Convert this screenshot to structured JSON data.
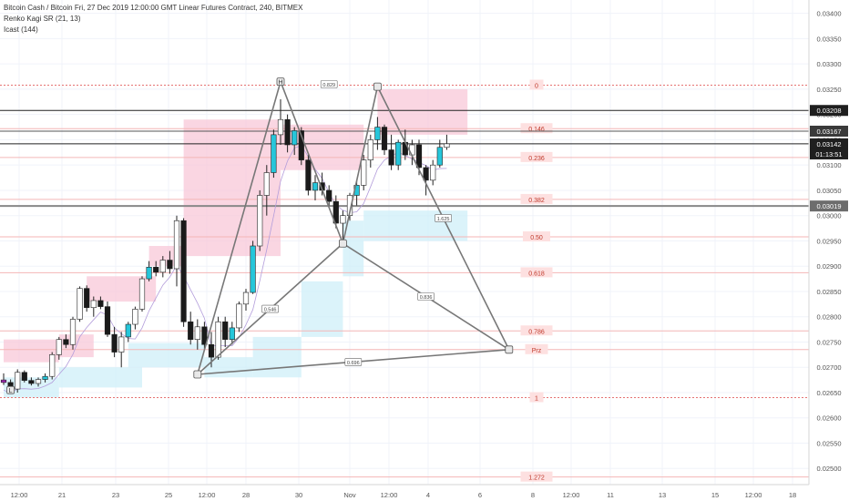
{
  "header": {
    "title": "Bitcoin Cash / Bitcoin Fri, 27 Dec 2019 12:00:00 GMT Linear Futures Contract, 240, BITMEX",
    "indicator_1": "Renko Kagi SR (21, 13)",
    "indicator_2": "Icast (144)"
  },
  "chart_data": {
    "type": "candlestick",
    "y_axis": {
      "ticks": [
        "0.03400",
        "0.03350",
        "0.03300",
        "0.03250",
        "0.03200",
        "0.03150",
        "0.03100",
        "0.03050",
        "0.03000",
        "0.02950",
        "0.02900",
        "0.02850",
        "0.02800",
        "0.02750",
        "0.02700",
        "0.02650",
        "0.02600",
        "0.02550",
        "0.02500"
      ],
      "range": [
        0.02468,
        0.03412
      ]
    },
    "x_axis": {
      "ticks": [
        "12:00",
        "21",
        "23",
        "25",
        "12:00",
        "28",
        "30",
        "Nov",
        "12:00",
        "4",
        "6",
        "8",
        "12:00",
        "11",
        "13",
        "15",
        "12:00",
        "18"
      ]
    },
    "price_labels": [
      {
        "text": "0.03208",
        "value": 0.03208,
        "style": "dark"
      },
      {
        "text": "0.03167",
        "value": 0.03167,
        "style": "light"
      },
      {
        "text": "0.03142",
        "value": 0.03142,
        "style": "dark"
      },
      {
        "text": "01:13:51",
        "value": 0.03122,
        "style": "dark"
      },
      {
        "text": "0.03019",
        "value": 0.03019,
        "style": "gray"
      }
    ],
    "fib_levels": [
      {
        "label": "0",
        "value": 0.03258
      },
      {
        "label": "0.146",
        "value": 0.03172
      },
      {
        "label": "0.236",
        "value": 0.03115
      },
      {
        "label": "0.382",
        "value": 0.03032
      },
      {
        "label": "0.50",
        "value": 0.02958
      },
      {
        "label": "0.618",
        "value": 0.02887
      },
      {
        "label": "0.786",
        "value": 0.02772
      },
      {
        "label": "Prz",
        "value": 0.02735
      },
      {
        "label": "1",
        "value": 0.0264
      },
      {
        "label": "1.272",
        "value": 0.02483
      }
    ],
    "pattern_points": [
      {
        "label": "L",
        "bar": 1,
        "value": 0.02655
      },
      {
        "label": "H",
        "bar": 40,
        "value": 0.03265
      },
      {
        "label": "",
        "bar": 28,
        "value": 0.02686
      },
      {
        "label": "",
        "bar": 49,
        "value": 0.02945
      },
      {
        "label": "",
        "bar": 54,
        "value": 0.03255
      },
      {
        "label": "",
        "bar": 73,
        "value": 0.02735
      }
    ],
    "pattern_ratios": [
      "0.829",
      "0.546",
      "0.836",
      "1.625",
      "0.696"
    ],
    "candles": [
      [
        0.02675,
        0.02688,
        0.02665,
        0.0267
      ],
      [
        0.0267,
        0.02676,
        0.0265,
        0.02657
      ],
      [
        0.02657,
        0.02696,
        0.0265,
        0.0269
      ],
      [
        0.0269,
        0.02694,
        0.0267,
        0.02674
      ],
      [
        0.02674,
        0.0268,
        0.02664,
        0.02668
      ],
      [
        0.02668,
        0.0268,
        0.02662,
        0.02676
      ],
      [
        0.02676,
        0.02688,
        0.0267,
        0.02682
      ],
      [
        0.02682,
        0.0273,
        0.02676,
        0.02725
      ],
      [
        0.02725,
        0.0276,
        0.02715,
        0.02755
      ],
      [
        0.02755,
        0.02765,
        0.02738,
        0.02745
      ],
      [
        0.02745,
        0.028,
        0.02735,
        0.02795
      ],
      [
        0.02795,
        0.0286,
        0.0279,
        0.02856
      ],
      [
        0.02856,
        0.02862,
        0.0281,
        0.02818
      ],
      [
        0.02818,
        0.0284,
        0.028,
        0.02832
      ],
      [
        0.02832,
        0.0284,
        0.02815,
        0.0282
      ],
      [
        0.0282,
        0.0283,
        0.0276,
        0.02765
      ],
      [
        0.02765,
        0.0278,
        0.0272,
        0.0273
      ],
      [
        0.0273,
        0.0277,
        0.027,
        0.0276
      ],
      [
        0.0276,
        0.0279,
        0.0275,
        0.02785
      ],
      [
        0.02785,
        0.0282,
        0.02775,
        0.02815
      ],
      [
        0.02815,
        0.0288,
        0.0281,
        0.02875
      ],
      [
        0.02875,
        0.0291,
        0.0287,
        0.02898
      ],
      [
        0.02898,
        0.0291,
        0.0288,
        0.02888
      ],
      [
        0.02888,
        0.0292,
        0.02878,
        0.02912
      ],
      [
        0.02912,
        0.0293,
        0.02885,
        0.02895
      ],
      [
        0.02895,
        0.03,
        0.0286,
        0.0299
      ],
      [
        0.0299,
        0.02995,
        0.0278,
        0.0279
      ],
      [
        0.0279,
        0.0281,
        0.02745,
        0.02755
      ],
      [
        0.02755,
        0.02795,
        0.02735,
        0.0278
      ],
      [
        0.0278,
        0.0279,
        0.02735,
        0.02745
      ],
      [
        0.02745,
        0.0277,
        0.027,
        0.0272
      ],
      [
        0.0272,
        0.028,
        0.02715,
        0.0279
      ],
      [
        0.0279,
        0.028,
        0.0274,
        0.02755
      ],
      [
        0.02755,
        0.0279,
        0.02745,
        0.02778
      ],
      [
        0.02778,
        0.0283,
        0.0277,
        0.02825
      ],
      [
        0.02825,
        0.02855,
        0.02812,
        0.02848
      ],
      [
        0.02848,
        0.0295,
        0.02845,
        0.0294
      ],
      [
        0.0294,
        0.0305,
        0.0293,
        0.0304
      ],
      [
        0.0304,
        0.031,
        0.03,
        0.03085
      ],
      [
        0.03085,
        0.0317,
        0.03075,
        0.0316
      ],
      [
        0.0316,
        0.0323,
        0.0314,
        0.0319
      ],
      [
        0.0319,
        0.032,
        0.03125,
        0.0314
      ],
      [
        0.0314,
        0.03175,
        0.0312,
        0.03168
      ],
      [
        0.03168,
        0.03175,
        0.031,
        0.0311
      ],
      [
        0.0311,
        0.0312,
        0.0304,
        0.0305
      ],
      [
        0.0305,
        0.0308,
        0.0303,
        0.03065
      ],
      [
        0.03065,
        0.03085,
        0.0304,
        0.0305
      ],
      [
        0.0305,
        0.0306,
        0.0302,
        0.03028
      ],
      [
        0.03028,
        0.0304,
        0.02975,
        0.02985
      ],
      [
        0.02985,
        0.0301,
        0.0295,
        0.03
      ],
      [
        0.03,
        0.03045,
        0.0299,
        0.0304
      ],
      [
        0.0304,
        0.0307,
        0.0302,
        0.0306
      ],
      [
        0.0306,
        0.0312,
        0.0305,
        0.0311
      ],
      [
        0.0311,
        0.0316,
        0.03095,
        0.0315
      ],
      [
        0.0315,
        0.03195,
        0.0313,
        0.03175
      ],
      [
        0.03175,
        0.0318,
        0.0312,
        0.0313
      ],
      [
        0.0313,
        0.0316,
        0.0309,
        0.031
      ],
      [
        0.031,
        0.0315,
        0.0309,
        0.03145
      ],
      [
        0.03145,
        0.0317,
        0.0311,
        0.0312
      ],
      [
        0.0312,
        0.0315,
        0.031,
        0.0314
      ],
      [
        0.0314,
        0.0315,
        0.0308,
        0.03095
      ],
      [
        0.03095,
        0.031,
        0.0304,
        0.0307
      ],
      [
        0.0307,
        0.0311,
        0.0306,
        0.031
      ],
      [
        0.031,
        0.0315,
        0.03095,
        0.03135
      ],
      [
        0.03135,
        0.0316,
        0.0313,
        0.03142
      ]
    ]
  }
}
